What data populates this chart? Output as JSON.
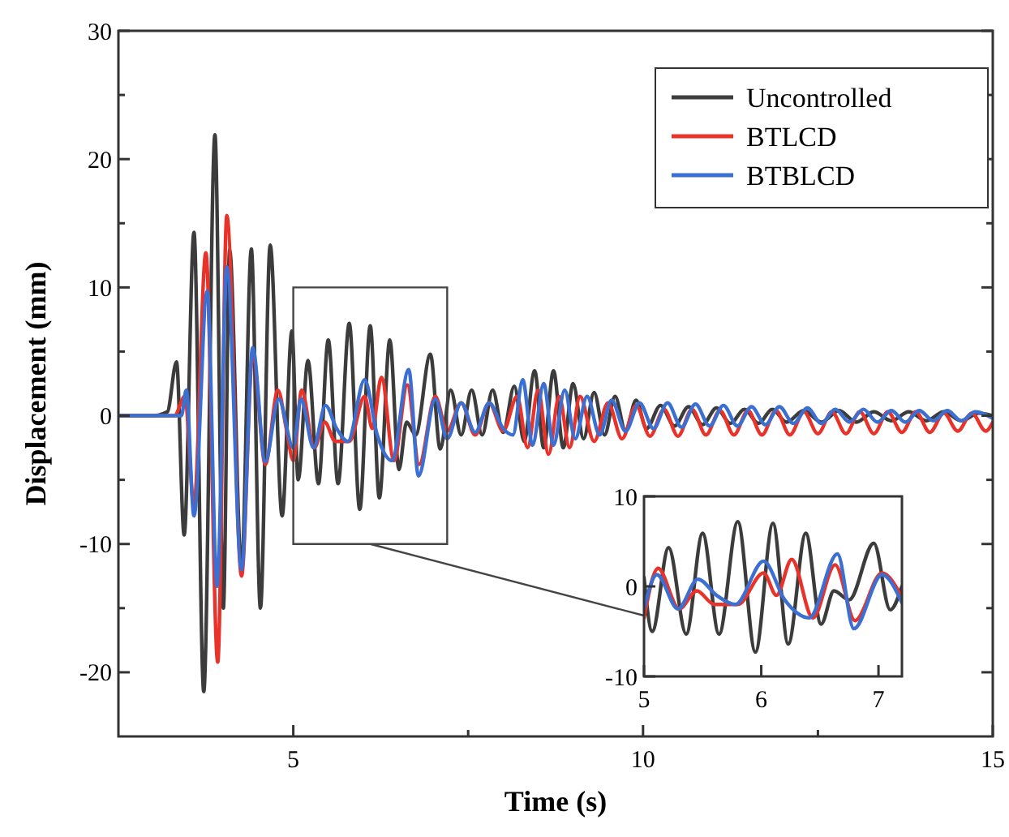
{
  "chart_data": [
    {
      "type": "line",
      "xlabel": "Time (s)",
      "ylabel": "Displacement (mm)",
      "xlim": [
        2.5,
        15
      ],
      "ylim": [
        -25,
        30
      ],
      "xticks": [
        5,
        {
          "value": 7.5,
          "label": null
        },
        10,
        {
          "value": 12.5,
          "label": null
        },
        15
      ],
      "yticks": [
        -20,
        {
          "value": -15,
          "label": null
        },
        -10,
        {
          "value": -5,
          "label": null
        },
        0,
        {
          "value": 5,
          "label": null
        },
        10,
        {
          "value": 15,
          "label": null
        },
        20,
        {
          "value": 25,
          "label": null
        },
        30
      ],
      "grid": false,
      "legend": "top right",
      "line_style": "solid",
      "marker": "none",
      "series": [
        {
          "name": "Uncontrolled",
          "color": "#3c3c3c",
          "x": [
            2.5,
            3.0,
            3.2,
            3.33,
            3.44,
            3.58,
            3.72,
            3.88,
            4.0,
            4.09,
            4.26,
            4.4,
            4.53,
            4.67,
            4.84,
            4.98,
            5.07,
            5.21,
            5.36,
            5.5,
            5.64,
            5.8,
            5.95,
            6.1,
            6.23,
            6.38,
            6.51,
            6.62,
            6.75,
            6.96,
            7.1,
            7.25,
            7.4,
            7.55,
            7.7,
            7.85,
            8.0,
            8.16,
            8.3,
            8.45,
            8.58,
            8.72,
            8.86,
            9.0,
            9.15,
            9.3,
            9.45,
            9.6,
            9.75,
            9.9,
            10.05,
            10.25,
            10.45,
            10.65,
            10.85,
            11.05,
            11.25,
            11.45,
            11.65,
            11.85,
            12.05,
            12.3,
            12.55,
            12.8,
            13.05,
            13.3,
            13.55,
            13.8,
            14.05,
            14.3,
            14.55,
            14.8,
            15
          ],
          "values": [
            0,
            0,
            0.3,
            4.2,
            -9.3,
            14.3,
            -21.5,
            21.9,
            -15,
            12.9,
            -12,
            13,
            -15,
            13.3,
            -7.8,
            6.6,
            -5,
            4.3,
            -5.3,
            5.9,
            -5.3,
            7.2,
            -7.3,
            7,
            -6.4,
            5.9,
            -4.2,
            -0.5,
            -1.5,
            4.8,
            -2.6,
            2,
            -1.5,
            2,
            -1.5,
            2,
            -1.3,
            2.3,
            -2,
            3.5,
            -2.5,
            3.5,
            -2.5,
            2.5,
            -1.8,
            1.8,
            -1.5,
            1.5,
            -1.2,
            1.2,
            -1,
            0.8,
            -0.8,
            0.7,
            -0.7,
            0.6,
            -0.6,
            0.5,
            -0.6,
            0.5,
            -0.5,
            0.4,
            -0.5,
            0.4,
            -0.5,
            0.3,
            -0.4,
            0.3,
            -0.4,
            0.3,
            -0.4,
            0.2,
            0
          ]
        },
        {
          "name": "BTLCD",
          "color": "#e8322a",
          "x": [
            2.5,
            3.3,
            3.45,
            3.58,
            3.75,
            3.92,
            4.05,
            4.26,
            4.42,
            4.6,
            4.78,
            4.9,
            5.0,
            5.12,
            5.3,
            5.45,
            5.6,
            5.8,
            6.02,
            6.13,
            6.26,
            6.44,
            6.63,
            6.8,
            7.03,
            7.2,
            7.4,
            7.6,
            7.8,
            8.0,
            8.2,
            8.35,
            8.5,
            8.65,
            8.8,
            8.95,
            9.1,
            9.3,
            9.5,
            9.7,
            9.9,
            10.1,
            10.3,
            10.5,
            10.7,
            10.9,
            11.1,
            11.3,
            11.5,
            11.7,
            11.9,
            12.1,
            12.3,
            12.5,
            12.7,
            12.9,
            13.1,
            13.3,
            13.5,
            13.7,
            13.9,
            14.1,
            14.3,
            14.5,
            14.7,
            14.9,
            15
          ],
          "values": [
            0,
            0,
            1.5,
            -7,
            12.7,
            -19.2,
            15.6,
            -12.5,
            4.8,
            -3.8,
            2,
            -1,
            -3.5,
            2,
            -2.5,
            -0.5,
            -2,
            -2,
            1.5,
            -1,
            3,
            -3.5,
            2.4,
            -3.8,
            1.5,
            -1.2,
            1,
            -1.5,
            1,
            -1.2,
            1.5,
            -2.5,
            2,
            -3,
            1.5,
            -2.5,
            1.5,
            -2,
            1,
            -1.8,
            0.8,
            -1.6,
            0.5,
            -1.6,
            0.5,
            -1.5,
            0.4,
            -1.5,
            0.4,
            -1.5,
            0.4,
            -1.5,
            0.3,
            -1.4,
            0.3,
            -1.4,
            0.3,
            -1.4,
            0.3,
            -1.3,
            0.3,
            -1.3,
            0.2,
            -1.2,
            0.2,
            -1.2,
            -0.5
          ]
        },
        {
          "name": "BTBLCD",
          "color": "#3b6fd1",
          "x": [
            2.5,
            3.4,
            3.47,
            3.58,
            3.77,
            3.91,
            4.05,
            4.26,
            4.42,
            4.6,
            4.79,
            5.0,
            5.11,
            5.29,
            5.46,
            5.62,
            5.78,
            6.02,
            6.2,
            6.41,
            6.65,
            6.79,
            7.03,
            7.2,
            7.4,
            7.6,
            7.8,
            8.0,
            8.14,
            8.28,
            8.42,
            8.58,
            8.72,
            8.88,
            9.03,
            9.2,
            9.38,
            9.55,
            9.75,
            9.95,
            10.15,
            10.35,
            10.55,
            10.75,
            10.95,
            11.15,
            11.35,
            11.55,
            11.75,
            11.95,
            12.15,
            12.35,
            12.55,
            12.75,
            12.95,
            13.15,
            13.35,
            13.55,
            13.75,
            13.95,
            14.15,
            14.35,
            14.55,
            14.75,
            15
          ],
          "values": [
            0,
            0,
            2,
            -7.8,
            9.7,
            -13.3,
            11.6,
            -12,
            5.3,
            -3.6,
            1.3,
            -2.5,
            1.3,
            -2.5,
            0.8,
            -1,
            -2,
            2.8,
            -1.5,
            -3.5,
            3.6,
            -4.7,
            1.3,
            -1.8,
            1,
            -1.3,
            1,
            -1,
            -1.5,
            2.8,
            -2.3,
            2.5,
            -2.3,
            2,
            -1.8,
            1.5,
            -1.5,
            1.2,
            -1.2,
            1,
            -1,
            1,
            -0.9,
            0.9,
            -0.8,
            0.8,
            -0.8,
            0.7,
            -0.7,
            0.7,
            -0.6,
            0.6,
            -0.6,
            0.5,
            -0.5,
            0.5,
            -0.5,
            0.4,
            -0.5,
            0.4,
            -0.4,
            0.4,
            -0.4,
            0.3,
            -0.2
          ]
        }
      ]
    },
    {
      "type": "line",
      "xlim": [
        5,
        7.2
      ],
      "ylim": [
        -10,
        10
      ],
      "xticks": [
        5,
        6,
        7
      ],
      "yticks": [
        -10,
        0,
        10
      ],
      "grid": false,
      "line_style": "solid",
      "marker": "none",
      "series": [
        {
          "color": "#3c3c3c",
          "x": [
            5.0,
            5.07,
            5.21,
            5.36,
            5.5,
            5.64,
            5.8,
            5.95,
            6.1,
            6.23,
            6.38,
            6.51,
            6.62,
            6.75,
            6.96,
            7.1,
            7.2
          ],
          "values": [
            1,
            -5,
            4.3,
            -5.3,
            5.9,
            -5.3,
            7.2,
            -7.3,
            7,
            -6.4,
            5.9,
            -4.2,
            -0.5,
            -1.5,
            4.8,
            -2.6,
            0
          ]
        },
        {
          "color": "#e8322a",
          "x": [
            5.0,
            5.12,
            5.3,
            5.45,
            5.6,
            5.8,
            6.02,
            6.13,
            6.26,
            6.44,
            6.63,
            6.8,
            7.03,
            7.2
          ],
          "values": [
            -3.5,
            2,
            -2.5,
            -0.5,
            -2,
            -2,
            1.5,
            -1,
            3,
            -3.5,
            2.4,
            -3.8,
            1.5,
            -1.2
          ]
        },
        {
          "color": "#3b6fd1",
          "x": [
            5.0,
            5.11,
            5.29,
            5.46,
            5.62,
            5.78,
            6.02,
            6.2,
            6.41,
            6.65,
            6.79,
            7.03,
            7.2
          ],
          "values": [
            -2.5,
            1.3,
            -2.5,
            0.8,
            -1,
            -2,
            2.8,
            -1.5,
            -3.5,
            3.6,
            -4.7,
            1.3,
            -1.8
          ]
        }
      ]
    }
  ]
}
